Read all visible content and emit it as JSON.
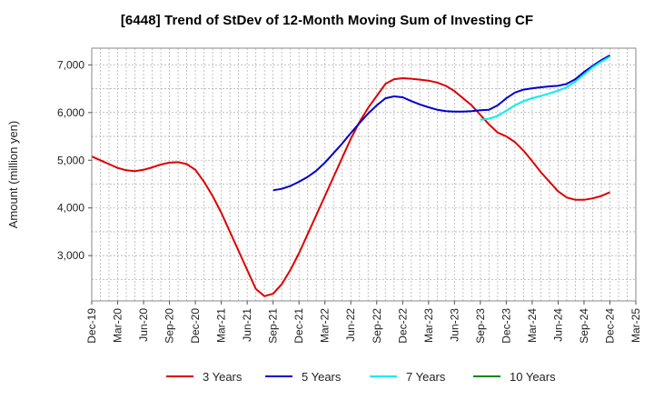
{
  "chart_data": {
    "type": "line",
    "title": "[6448]  Trend of StDev of 12-Month Moving Sum of Investing CF",
    "ylabel": "Amount (million yen)",
    "xlabel": "",
    "ylim": [
      2050,
      7350
    ],
    "yticks": [
      3000,
      4000,
      5000,
      6000,
      7000
    ],
    "ytick_labels": [
      "3,000",
      "4,000",
      "5,000",
      "6,000",
      "7,000"
    ],
    "x_start": "Dec-19",
    "x_end": "Mar-25",
    "x_ticks": [
      "Dec-19",
      "Mar-20",
      "Jun-20",
      "Sep-20",
      "Dec-20",
      "Mar-21",
      "Jun-21",
      "Sep-21",
      "Dec-21",
      "Mar-22",
      "Jun-22",
      "Sep-22",
      "Dec-22",
      "Mar-23",
      "Jun-23",
      "Sep-23",
      "Dec-23",
      "Mar-24",
      "Jun-24",
      "Sep-24",
      "Dec-24",
      "Mar-25"
    ],
    "grid": true,
    "legend_position": "bottom",
    "series": [
      {
        "name": "3 Years",
        "color": "#dd0000",
        "points": [
          [
            "Dec-19",
            5080
          ],
          [
            "Jan-20",
            5000
          ],
          [
            "Feb-20",
            4920
          ],
          [
            "Mar-20",
            4840
          ],
          [
            "Apr-20",
            4790
          ],
          [
            "May-20",
            4770
          ],
          [
            "Jun-20",
            4800
          ],
          [
            "Jul-20",
            4850
          ],
          [
            "Aug-20",
            4910
          ],
          [
            "Sep-20",
            4950
          ],
          [
            "Oct-20",
            4960
          ],
          [
            "Nov-20",
            4920
          ],
          [
            "Dec-20",
            4800
          ],
          [
            "Jan-21",
            4550
          ],
          [
            "Feb-21",
            4250
          ],
          [
            "Mar-21",
            3900
          ],
          [
            "Apr-21",
            3500
          ],
          [
            "May-21",
            3100
          ],
          [
            "Jun-21",
            2700
          ],
          [
            "Jul-21",
            2300
          ],
          [
            "Aug-21",
            2150
          ],
          [
            "Sep-21",
            2200
          ],
          [
            "Oct-21",
            2400
          ],
          [
            "Nov-21",
            2700
          ],
          [
            "Dec-21",
            3050
          ],
          [
            "Jan-22",
            3450
          ],
          [
            "Feb-22",
            3850
          ],
          [
            "Mar-22",
            4250
          ],
          [
            "Apr-22",
            4650
          ],
          [
            "May-22",
            5050
          ],
          [
            "Jun-22",
            5450
          ],
          [
            "Jul-22",
            5800
          ],
          [
            "Aug-22",
            6100
          ],
          [
            "Sep-22",
            6350
          ],
          [
            "Oct-22",
            6600
          ],
          [
            "Nov-22",
            6700
          ],
          [
            "Dec-22",
            6720
          ],
          [
            "Jan-23",
            6710
          ],
          [
            "Feb-23",
            6690
          ],
          [
            "Mar-23",
            6670
          ],
          [
            "Apr-23",
            6630
          ],
          [
            "May-23",
            6560
          ],
          [
            "Jun-23",
            6450
          ],
          [
            "Jul-23",
            6300
          ],
          [
            "Aug-23",
            6150
          ],
          [
            "Sep-23",
            5950
          ],
          [
            "Oct-23",
            5750
          ],
          [
            "Nov-23",
            5580
          ],
          [
            "Dec-23",
            5500
          ],
          [
            "Jan-24",
            5380
          ],
          [
            "Feb-24",
            5200
          ],
          [
            "Mar-24",
            4980
          ],
          [
            "Apr-24",
            4750
          ],
          [
            "May-24",
            4550
          ],
          [
            "Jun-24",
            4350
          ],
          [
            "Jul-24",
            4220
          ],
          [
            "Aug-24",
            4170
          ],
          [
            "Sep-24",
            4170
          ],
          [
            "Oct-24",
            4200
          ],
          [
            "Nov-24",
            4250
          ],
          [
            "Dec-24",
            4330
          ]
        ]
      },
      {
        "name": "5 Years",
        "color": "#0000cc",
        "points": [
          [
            "Sep-21",
            4370
          ],
          [
            "Oct-21",
            4400
          ],
          [
            "Nov-21",
            4460
          ],
          [
            "Dec-21",
            4550
          ],
          [
            "Jan-22",
            4650
          ],
          [
            "Feb-22",
            4780
          ],
          [
            "Mar-22",
            4950
          ],
          [
            "Apr-22",
            5150
          ],
          [
            "May-22",
            5350
          ],
          [
            "Jun-22",
            5570
          ],
          [
            "Jul-22",
            5780
          ],
          [
            "Aug-22",
            5980
          ],
          [
            "Sep-22",
            6150
          ],
          [
            "Oct-22",
            6300
          ],
          [
            "Nov-22",
            6340
          ],
          [
            "Dec-22",
            6320
          ],
          [
            "Jan-23",
            6240
          ],
          [
            "Feb-23",
            6170
          ],
          [
            "Mar-23",
            6110
          ],
          [
            "Apr-23",
            6060
          ],
          [
            "May-23",
            6030
          ],
          [
            "Jun-23",
            6020
          ],
          [
            "Jul-23",
            6020
          ],
          [
            "Aug-23",
            6030
          ],
          [
            "Sep-23",
            6050
          ],
          [
            "Oct-23",
            6060
          ],
          [
            "Nov-23",
            6150
          ],
          [
            "Dec-23",
            6300
          ],
          [
            "Jan-24",
            6420
          ],
          [
            "Feb-24",
            6480
          ],
          [
            "Mar-24",
            6510
          ],
          [
            "Apr-24",
            6530
          ],
          [
            "May-24",
            6550
          ],
          [
            "Jun-24",
            6560
          ],
          [
            "Jul-24",
            6600
          ],
          [
            "Aug-24",
            6700
          ],
          [
            "Sep-24",
            6850
          ],
          [
            "Oct-24",
            6980
          ],
          [
            "Nov-24",
            7100
          ],
          [
            "Dec-24",
            7200
          ]
        ]
      },
      {
        "name": "7 Years",
        "color": "#00eeee",
        "points": [
          [
            "Sep-23",
            5850
          ],
          [
            "Oct-23",
            5870
          ],
          [
            "Nov-23",
            5930
          ],
          [
            "Dec-23",
            6040
          ],
          [
            "Jan-24",
            6150
          ],
          [
            "Feb-24",
            6240
          ],
          [
            "Mar-24",
            6300
          ],
          [
            "Apr-24",
            6350
          ],
          [
            "May-24",
            6400
          ],
          [
            "Jun-24",
            6460
          ],
          [
            "Jul-24",
            6530
          ],
          [
            "Aug-24",
            6650
          ],
          [
            "Sep-24",
            6800
          ],
          [
            "Oct-24",
            6950
          ],
          [
            "Nov-24",
            7070
          ],
          [
            "Dec-24",
            7170
          ]
        ]
      },
      {
        "name": "10 Years",
        "color": "#008800",
        "points": []
      }
    ]
  }
}
